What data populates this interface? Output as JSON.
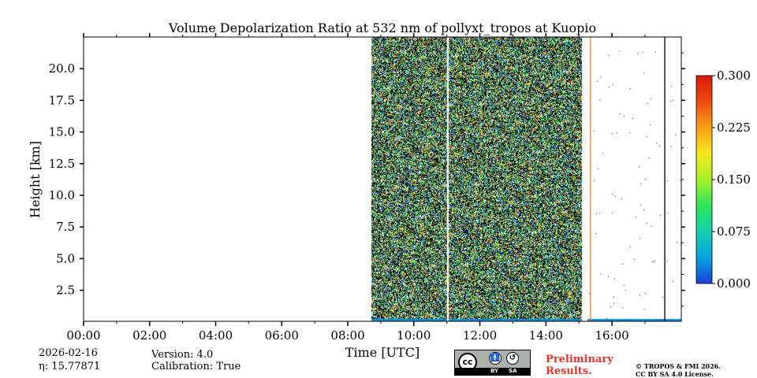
{
  "chart_data": {
    "type": "heatmap",
    "title": "Volume Depolarization Ratio at 532 nm of pollyxt_tropos at Kuopio",
    "xlabel": "Time [UTC]",
    "ylabel": "Height [km]",
    "xlim": [
      0,
      18.1
    ],
    "ylim": [
      0.05,
      22.5
    ],
    "x_ticks": [
      0,
      2,
      4,
      6,
      8,
      10,
      12,
      14,
      16
    ],
    "x_tick_labels": [
      "00:00",
      "02:00",
      "04:00",
      "06:00",
      "08:00",
      "10:00",
      "12:00",
      "14:00",
      "16:00"
    ],
    "y_ticks": [
      2.5,
      5.0,
      7.5,
      10.0,
      12.5,
      15.0,
      17.5,
      20.0
    ],
    "y_tick_labels": [
      "2.5",
      "5.0",
      "7.5",
      "10.0",
      "12.5",
      "15.0",
      "17.5",
      "20.0"
    ],
    "colorbar": {
      "min": 0.0,
      "max": 0.3,
      "ticks": [
        0.0,
        0.075,
        0.15,
        0.225,
        0.3
      ],
      "tick_labels": [
        "0.000",
        "0.075",
        "0.150",
        "0.225",
        "0.300"
      ],
      "colormap": [
        "#1a3fd6",
        "#0aa4e0",
        "#16d0b0",
        "#2ee65a",
        "#a8f02a",
        "#f5e81e",
        "#f8a018",
        "#ee4a12",
        "#d81a0a"
      ]
    },
    "data_segments": [
      {
        "start": 8.72,
        "end": 11.0,
        "type": "noisy"
      },
      {
        "start": 11.05,
        "end": 15.08,
        "type": "noisy"
      },
      {
        "start": 15.25,
        "end": 18.1,
        "type": "sparse"
      }
    ],
    "near_surface_layer": {
      "top_km": 0.2,
      "value": 0.02
    },
    "vertical_markers": [
      {
        "time": 11.02,
        "color": "#ffffff"
      },
      {
        "time": 15.35,
        "color": "#e08030"
      },
      {
        "time": 17.6,
        "color": "#000000"
      }
    ]
  },
  "footer": {
    "date": "2026-02-16",
    "eta": "η: 15.77871",
    "version": "Version: 4.0",
    "calibration": "Calibration: True",
    "preliminary_line1": "Preliminary",
    "preliminary_line2": "Results.",
    "copyright_line1": "© TROPOS & FMI 2026.",
    "copyright_line2": "CC BY SA 4.0 License."
  },
  "license_badge": {
    "cc": "cc",
    "by": "BY",
    "sa": "SA"
  }
}
